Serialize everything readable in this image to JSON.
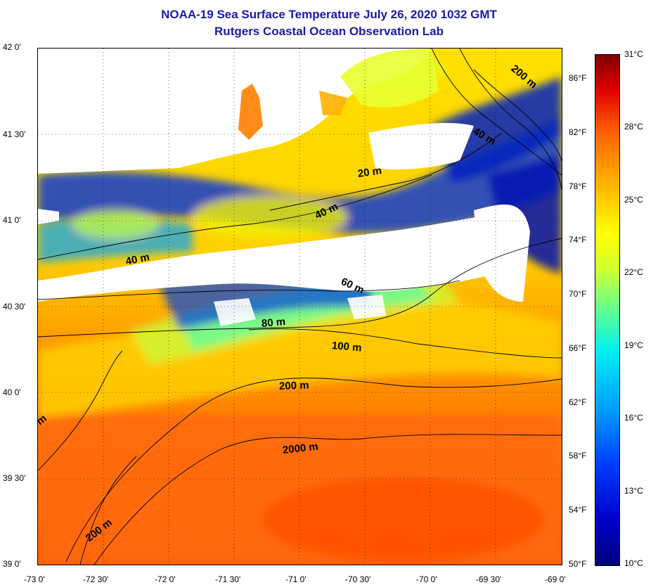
{
  "title": {
    "line1": "NOAA-19 Sea Surface Temperature July 26, 2020 1032 GMT",
    "line2": "Rutgers Coastal Ocean Observation Lab"
  },
  "axes": {
    "lat_labels": [
      "42 0'",
      "41 30'",
      "41 0'",
      "40 30'",
      "40 0'",
      "39 30'",
      "39 0'"
    ],
    "lon_labels": [
      "-73 0'",
      "-72 30'",
      "-72 0'",
      "-71 30'",
      "-71 0'",
      "-70 30'",
      "-70 0'",
      "-69 30'",
      "-69 0'"
    ]
  },
  "contours": {
    "c1": "200 m",
    "c2": "40 m",
    "c3": "20 m",
    "c4": "40 m",
    "c5": "40 m",
    "c6": "60 m",
    "c7": "80 m",
    "c8": "100 m",
    "c9": "200 m",
    "c10": "2000 m",
    "c11": "200 m",
    "c12": "m"
  },
  "colorbar": {
    "celsius": [
      "31°C",
      "28°C",
      "25°C",
      "22°C",
      "19°C",
      "16°C",
      "13°C",
      "10°C"
    ],
    "fahrenheit": [
      "86°F",
      "82°F",
      "78°F",
      "74°F",
      "70°F",
      "66°F",
      "62°F",
      "58°F",
      "54°F",
      "50°F"
    ],
    "range_c": [
      10,
      31
    ]
  },
  "colors": {
    "title": "#1a1aa6",
    "warm": "#ff6a00",
    "cool": "#0000c8",
    "land": "#ffffff"
  }
}
